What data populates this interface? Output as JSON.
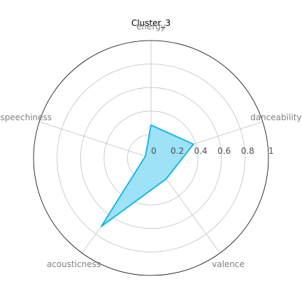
{
  "chart_data": {
    "type": "radar",
    "title": "Cluster_3",
    "axes": [
      "danceability",
      "valence",
      "acousticness",
      "speechiness",
      "energy"
    ],
    "series": [
      {
        "values": [
          0.38,
          0.22,
          0.72,
          0.05,
          0.28
        ]
      }
    ],
    "rlim": [
      0,
      1
    ],
    "rticks": [
      "0",
      "0.2",
      "0.4",
      "0.6",
      "0.8",
      "1"
    ],
    "grid": true,
    "colors": {
      "line": "#1ab6e6",
      "fill": "#98e0f7",
      "grid": "#c0c0c0",
      "outer": "#000000"
    }
  }
}
